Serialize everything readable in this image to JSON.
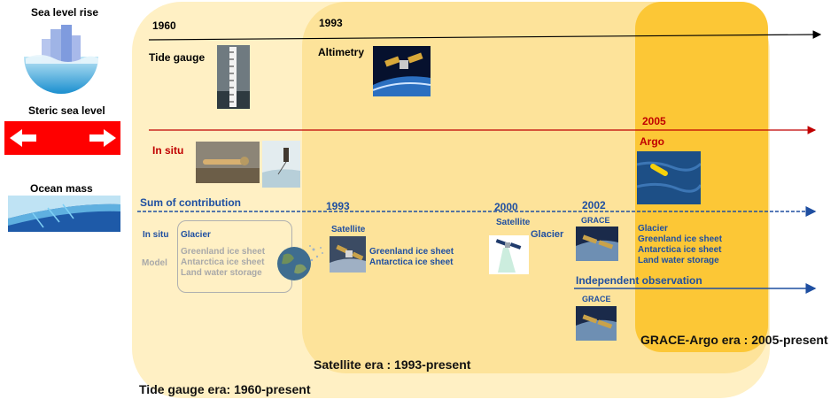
{
  "colors": {
    "tide_era_fill": "#fff0c4",
    "satellite_era_fill": "#fde39a",
    "grace_argo_era_fill": "#fcc736",
    "black_line": "#000000",
    "red_line": "#c00000",
    "blue_line": "#1f4fa1",
    "text_blue": "#1f4fa1",
    "text_grey": "#a9a9a9",
    "banner_red": "#ff0000"
  },
  "legend": {
    "sea_level_rise": "Sea level rise",
    "steric_sea_level": "Steric sea level",
    "ocean_mass": "Ocean mass"
  },
  "timeline_sea_level": {
    "year_1960": "1960",
    "tide_gauge": "Tide gauge",
    "year_1993": "1993",
    "altimetry": "Altimetry"
  },
  "timeline_steric": {
    "year_2005": "2005",
    "in_situ": "In situ",
    "argo": "Argo"
  },
  "timeline_mass": {
    "sum_of_contribution": "Sum of contribution",
    "year_1993": "1993",
    "year_2000": "2000",
    "year_2002": "2002",
    "in_situ": "In situ",
    "model": "Model",
    "glacier": "Glacier",
    "model_items": [
      "Greenland ice sheet",
      "Antarctica ice sheet",
      "Land water storage"
    ],
    "satellite_1993": "Satellite",
    "satellite_1993_items": [
      "Greenland ice sheet",
      "Antarctica ice sheet"
    ],
    "satellite_2000": "Satellite",
    "glacier_2000": "Glacier",
    "grace_2002": "GRACE",
    "grace_items": [
      "Glacier",
      "Greenland ice sheet",
      "Antarctica ice sheet",
      "Land water storage"
    ],
    "independent_observation": "Independent observation",
    "grace_independent": "GRACE"
  },
  "eras": {
    "grace_argo": "GRACE-Argo era : 2005-present",
    "satellite": "Satellite era : 1993-present",
    "tide_gauge": "Tide gauge era: 1960-present"
  },
  "icons": [
    "city-flood-icon",
    "double-arrow-icon",
    "ocean-current-icon",
    "tide-gauge-photo",
    "altimetry-satellite-photo",
    "in-situ-instrument-photo",
    "in-situ-sampling-photo",
    "argo-float-photo",
    "earth-globe-icon",
    "satellite-photo",
    "glacier-satellite-icon",
    "grace-satellite-photo"
  ]
}
